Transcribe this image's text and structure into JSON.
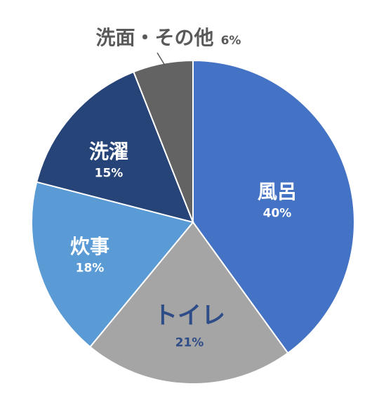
{
  "chart_data": {
    "type": "pie",
    "start_angle_deg": 0,
    "direction": "clockwise",
    "slices": [
      {
        "label": "風呂",
        "value": 40,
        "value_label": "40%",
        "color": "#4472C4",
        "label_color": "#FFFFFF"
      },
      {
        "label": "トイレ",
        "value": 21,
        "value_label": "21%",
        "color": "#A5A5A5",
        "label_color": "#2E4C87"
      },
      {
        "label": "炊事",
        "value": 18,
        "value_label": "18%",
        "color": "#5B9BD5",
        "label_color": "#FFFFFF"
      },
      {
        "label": "洗濯",
        "value": 15,
        "value_label": "15%",
        "color": "#264478",
        "label_color": "#FFFFFF"
      },
      {
        "label": "洗面・その他",
        "value": 6,
        "value_label": "6%",
        "color": "#636363",
        "label_color": "#595959"
      }
    ]
  }
}
